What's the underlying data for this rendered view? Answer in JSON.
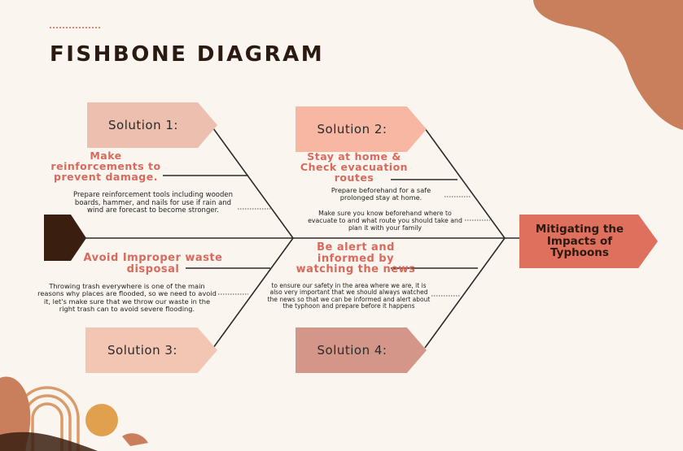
{
  "title": "FISHBONE DIAGRAM",
  "head": "Mitigating the Impacts of Typhoons",
  "colors": {
    "background": "#faf5ef",
    "blob": "#c97f5c",
    "accent": "#d9695b",
    "head_box": "#e0705e",
    "tail": "#3a1f10",
    "solution1": "#ecbfae",
    "solution2": "#f7b7a3",
    "solution3": "#f3c6b4",
    "solution4": "#d49688"
  },
  "solutions": [
    {
      "label": "Solution 1:"
    },
    {
      "label": "Solution 2:"
    },
    {
      "label": "Solution 3:"
    },
    {
      "label": "Solution 4:"
    }
  ],
  "causes": [
    {
      "heading": "Make reinforcements to prevent damage.",
      "description": "Prepare reinforcement tools including wooden boards, hammer, and nails for use if rain and wind are forecast to become stronger."
    },
    {
      "heading": "Stay at home & Check evacuation routes",
      "description": "Prepare beforehand for a safe prolonged stay at home.",
      "description2": "Make sure you know beforehand where to evacuate to and what route you should take and plan it with your family"
    },
    {
      "heading": "Avoid Improper waste disposal",
      "description": "Throwing trash everywhere is one of the main reasons why places are flooded, so we need to avoid it, let's make sure that we throw our waste in the right trash can to avoid severe flooding."
    },
    {
      "heading": "Be alert and informed by watching the news",
      "description": "to ensure our safety in the area where we are, it is also very important that we should always watched the news so that we can be informed and alert about the typhoon and prepare before it happens"
    }
  ]
}
